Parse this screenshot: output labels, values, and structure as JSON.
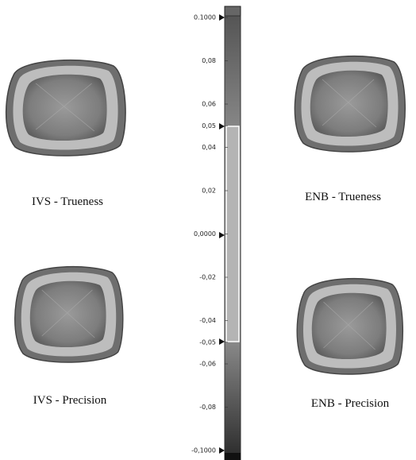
{
  "panels": [
    {
      "caption": "IVS  - Trueness"
    },
    {
      "caption": "ENB - Trueness"
    },
    {
      "caption": "IVS - Precision"
    },
    {
      "caption": "ENB - Precision"
    }
  ],
  "scale": {
    "ticks": [
      {
        "value": 0.1,
        "label": "0.1000"
      },
      {
        "value": 0.08,
        "label": "0,08"
      },
      {
        "value": 0.06,
        "label": "0,06"
      },
      {
        "value": 0.05,
        "label": "0,05"
      },
      {
        "value": 0.04,
        "label": "0,04"
      },
      {
        "value": 0.02,
        "label": "0,02"
      },
      {
        "value": 0,
        "label": "0,0000"
      },
      {
        "value": -0.02,
        "label": "-0,02"
      },
      {
        "value": -0.04,
        "label": "-0,04"
      },
      {
        "value": -0.05,
        "label": "-0,05"
      },
      {
        "value": -0.06,
        "label": "-0,06"
      },
      {
        "value": -0.08,
        "label": "-0,08"
      },
      {
        "value": -0.1,
        "label": "-0,1000"
      }
    ]
  }
}
